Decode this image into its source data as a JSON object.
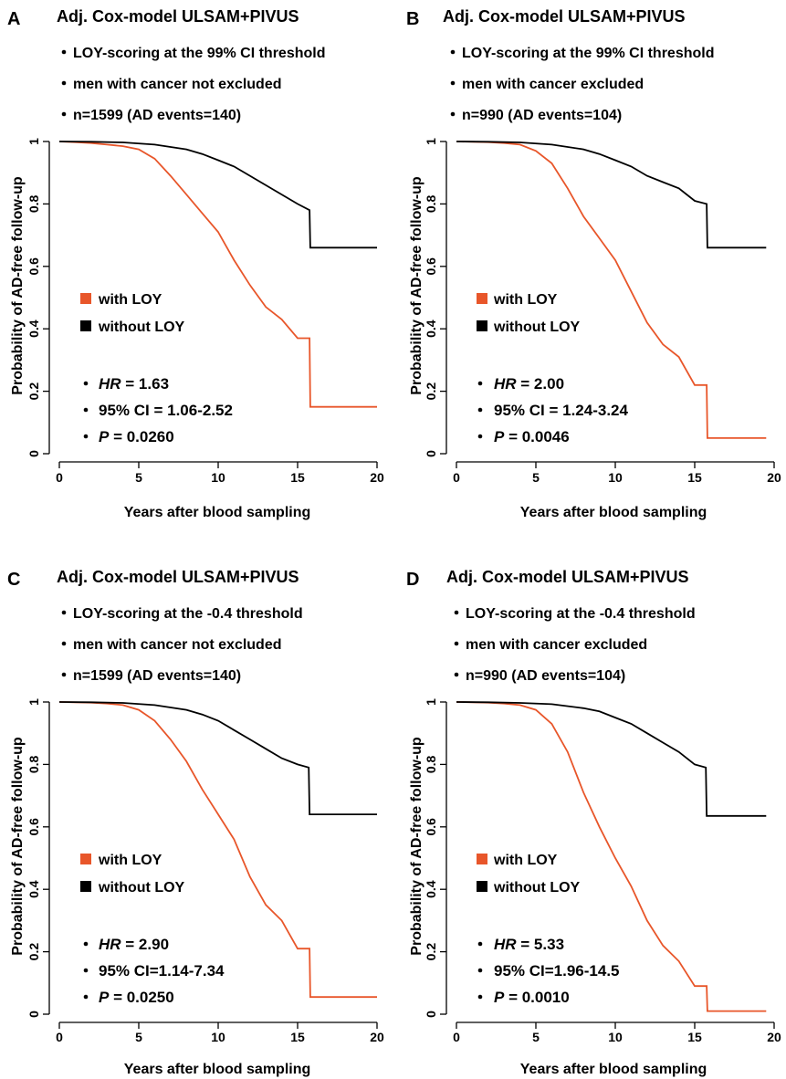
{
  "colors": {
    "with_loy": "#E8562A",
    "without_loy": "#000000"
  },
  "chart_data": [
    {
      "type": "line",
      "panel": "A",
      "title": "Adj. Cox-model ULSAM+PIVUS",
      "bullets": [
        "LOY-scoring at the 99% CI threshold",
        "men with cancer not excluded",
        "n=1599 (AD events=140)"
      ],
      "xlabel": "Years after blood sampling",
      "ylabel": "Probability of AD-free follow-up",
      "xlim": [
        0,
        20
      ],
      "ylim": [
        0,
        1
      ],
      "xticks": [
        "0",
        "5",
        "10",
        "15",
        "20"
      ],
      "yticks": [
        "0",
        "0.2",
        "0.4",
        "0.6",
        "0.8",
        "1"
      ],
      "legend": [
        "with LOY",
        "without LOY"
      ],
      "stats": {
        "hr_label": "HR",
        "hr_value": " = 1.63",
        "ci": "95% CI = 1.06-2.52",
        "p_label": "P",
        "p_value": " = 0.0260"
      },
      "series": [
        {
          "name": "with LOY",
          "x": [
            0,
            1,
            2,
            3,
            4,
            5,
            6,
            7,
            8,
            9,
            10,
            11,
            12,
            13,
            14,
            15,
            15.75,
            15.8,
            20
          ],
          "y": [
            1,
            0.998,
            0.995,
            0.99,
            0.985,
            0.975,
            0.945,
            0.89,
            0.83,
            0.77,
            0.71,
            0.62,
            0.54,
            0.47,
            0.43,
            0.37,
            0.37,
            0.15,
            0.15
          ]
        },
        {
          "name": "without LOY",
          "x": [
            0,
            2,
            4,
            6,
            8,
            9,
            10,
            11,
            12,
            13,
            14,
            15,
            15.75,
            15.8,
            20
          ],
          "y": [
            1,
            0.999,
            0.997,
            0.99,
            0.975,
            0.96,
            0.94,
            0.92,
            0.89,
            0.86,
            0.83,
            0.8,
            0.78,
            0.66,
            0.66
          ]
        }
      ]
    },
    {
      "type": "line",
      "panel": "B",
      "title": "Adj. Cox-model ULSAM+PIVUS",
      "bullets": [
        "LOY-scoring at the 99% CI threshold",
        "men with cancer excluded",
        "n=990 (AD events=104)"
      ],
      "xlabel": "Years after blood sampling",
      "ylabel": "Probability of AD-free follow-up",
      "xlim": [
        0,
        20
      ],
      "ylim": [
        0,
        1
      ],
      "xticks": [
        "0",
        "5",
        "10",
        "15",
        "20"
      ],
      "yticks": [
        "0",
        "0.2",
        "0.4",
        "0.6",
        "0.8",
        "1"
      ],
      "legend": [
        "with LOY",
        "without LOY"
      ],
      "stats": {
        "hr_label": "HR",
        "hr_value": " = 2.00",
        "ci": "95% CI = 1.24-3.24",
        "p_label": "P",
        "p_value": " = 0.0046"
      },
      "series": [
        {
          "name": "with LOY",
          "x": [
            0,
            2,
            3,
            4,
            5,
            6,
            7,
            8,
            9,
            10,
            11,
            12,
            13,
            14,
            15,
            15.75,
            15.8,
            19.5
          ],
          "y": [
            1,
            0.998,
            0.995,
            0.99,
            0.97,
            0.93,
            0.85,
            0.76,
            0.69,
            0.62,
            0.52,
            0.42,
            0.35,
            0.31,
            0.22,
            0.22,
            0.05,
            0.05
          ]
        },
        {
          "name": "without LOY",
          "x": [
            0,
            2,
            4,
            6,
            8,
            9,
            10,
            11,
            12,
            13,
            14,
            15,
            15.75,
            15.8,
            19.5
          ],
          "y": [
            1,
            0.999,
            0.997,
            0.99,
            0.975,
            0.96,
            0.94,
            0.92,
            0.89,
            0.87,
            0.85,
            0.81,
            0.8,
            0.66,
            0.66
          ]
        }
      ]
    },
    {
      "type": "line",
      "panel": "C",
      "title": "Adj. Cox-model ULSAM+PIVUS",
      "bullets": [
        "LOY-scoring at the -0.4 threshold",
        "men with cancer not excluded",
        "n=1599 (AD events=140)"
      ],
      "xlabel": "Years after blood sampling",
      "ylabel": "Probability of AD-free follow-up",
      "xlim": [
        0,
        20
      ],
      "ylim": [
        0,
        1
      ],
      "xticks": [
        "0",
        "5",
        "10",
        "15",
        "20"
      ],
      "yticks": [
        "0",
        "0.2",
        "0.4",
        "0.6",
        "0.8",
        "1"
      ],
      "legend": [
        "with LOY",
        "without LOY"
      ],
      "stats": {
        "hr_label": "HR",
        "hr_value": " = 2.90",
        "ci": "95% CI=1.14-7.34",
        "p_label": "P",
        "p_value": " = 0.0250"
      },
      "series": [
        {
          "name": "with LOY",
          "x": [
            0,
            2,
            3,
            4,
            5,
            6,
            7,
            8,
            9,
            10,
            11,
            12,
            13,
            14,
            15,
            15.75,
            15.8,
            20
          ],
          "y": [
            1,
            0.998,
            0.995,
            0.99,
            0.975,
            0.94,
            0.88,
            0.81,
            0.72,
            0.64,
            0.56,
            0.44,
            0.35,
            0.3,
            0.21,
            0.21,
            0.055,
            0.055
          ]
        },
        {
          "name": "without LOY",
          "x": [
            0,
            2,
            4,
            6,
            8,
            9,
            10,
            11,
            12,
            13,
            14,
            15,
            15.7,
            15.75,
            20
          ],
          "y": [
            1,
            0.999,
            0.997,
            0.99,
            0.975,
            0.96,
            0.94,
            0.91,
            0.88,
            0.85,
            0.82,
            0.8,
            0.79,
            0.64,
            0.64
          ]
        }
      ]
    },
    {
      "type": "line",
      "panel": "D",
      "title": "Adj. Cox-model ULSAM+PIVUS",
      "bullets": [
        "LOY-scoring at the -0.4 threshold",
        "men with cancer excluded",
        "n=990 (AD events=104)"
      ],
      "xlabel": "Years after blood sampling",
      "ylabel": "Probability of AD-free follow-up",
      "xlim": [
        0,
        20
      ],
      "ylim": [
        0,
        1
      ],
      "xticks": [
        "0",
        "5",
        "10",
        "15",
        "20"
      ],
      "yticks": [
        "0",
        "0.2",
        "0.4",
        "0.6",
        "0.8",
        "1"
      ],
      "legend": [
        "with LOY",
        "without LOY"
      ],
      "stats": {
        "hr_label": "HR",
        "hr_value": " = 5.33",
        "ci": "95% CI=1.96-14.5",
        "p_label": "P",
        "p_value": " = 0.0010"
      },
      "series": [
        {
          "name": "with LOY",
          "x": [
            0,
            2,
            3,
            4,
            5,
            6,
            7,
            8,
            9,
            10,
            11,
            12,
            13,
            14,
            15,
            15.75,
            15.8,
            19.5
          ],
          "y": [
            1,
            0.998,
            0.995,
            0.99,
            0.975,
            0.93,
            0.84,
            0.71,
            0.6,
            0.5,
            0.41,
            0.3,
            0.22,
            0.17,
            0.09,
            0.09,
            0.01,
            0.01
          ]
        },
        {
          "name": "without LOY",
          "x": [
            0,
            2,
            4,
            6,
            8,
            9,
            10,
            11,
            12,
            13,
            14,
            15,
            15.7,
            15.75,
            19.5
          ],
          "y": [
            1,
            0.999,
            0.997,
            0.993,
            0.98,
            0.97,
            0.95,
            0.93,
            0.9,
            0.87,
            0.84,
            0.8,
            0.79,
            0.635,
            0.635
          ]
        }
      ]
    }
  ]
}
